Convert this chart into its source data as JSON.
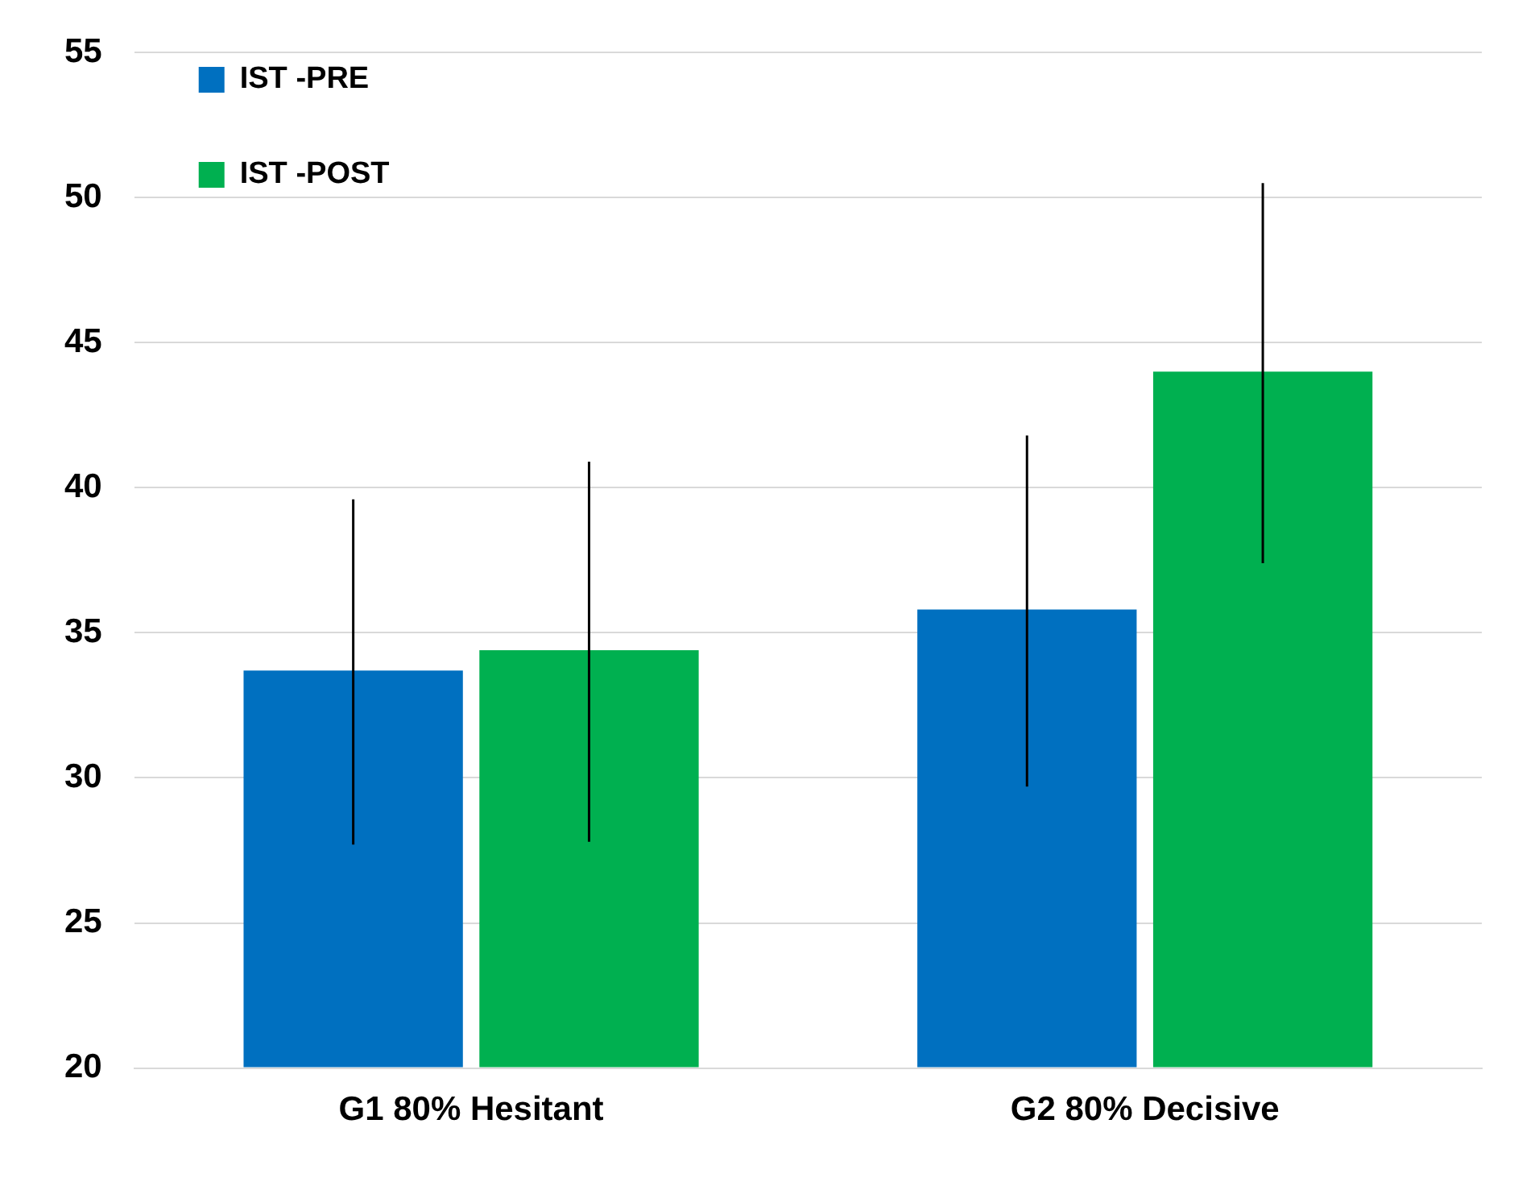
{
  "chart_data": {
    "type": "bar",
    "categories": [
      "G1 80% Hesitant",
      "G2 80% Decisive"
    ],
    "series": [
      {
        "name": "IST -PRE",
        "color": "#0070c0",
        "values": [
          33.7,
          35.8
        ],
        "errors": [
          [
            27.7,
            39.6
          ],
          [
            29.7,
            41.8
          ]
        ]
      },
      {
        "name": "IST -POST",
        "color": "#00b050",
        "values": [
          34.4,
          44.0
        ],
        "errors": [
          [
            27.8,
            40.9
          ],
          [
            37.4,
            50.5
          ]
        ]
      }
    ],
    "ylim": [
      20,
      55
    ],
    "yticks": [
      20,
      25,
      30,
      35,
      40,
      45,
      50,
      55
    ],
    "grid": "y",
    "legend": "top left"
  }
}
